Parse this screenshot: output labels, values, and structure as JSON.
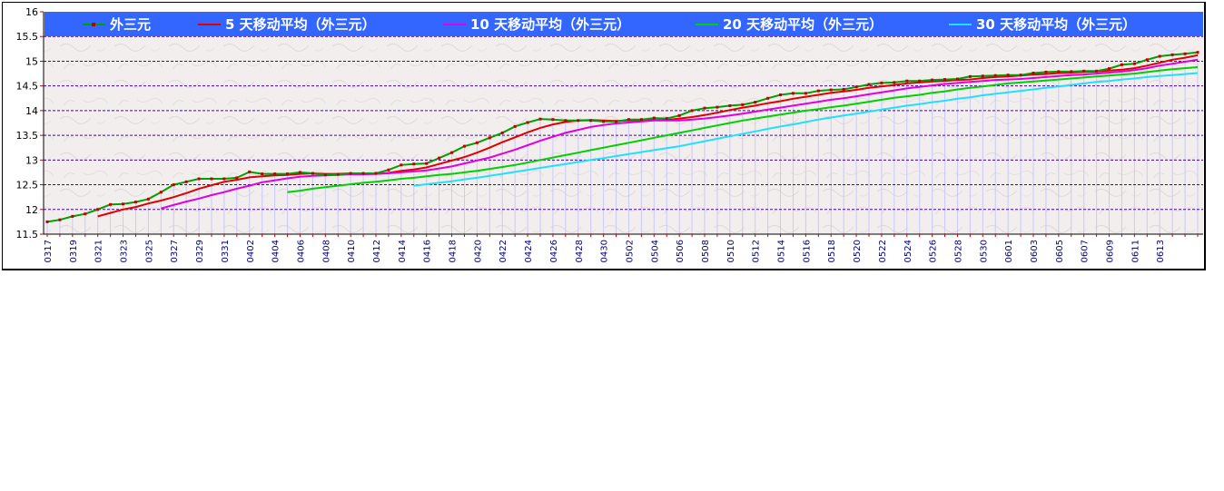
{
  "chart_data": {
    "type": "line",
    "title": "",
    "xlabel": "",
    "ylabel": "",
    "ylim": [
      11.5,
      16
    ],
    "yticks": [
      "11.5",
      "12",
      "12.5",
      "13",
      "13.5",
      "14",
      "14.5",
      "15",
      "15.5",
      "16"
    ],
    "legend_position": "top",
    "grid": "horizontal dashed",
    "x_tick_labels": [
      "0317",
      "0319",
      "0321",
      "0323",
      "0325",
      "0327",
      "0329",
      "0331",
      "0402",
      "0404",
      "0406",
      "0408",
      "0410",
      "0412",
      "0414",
      "0416",
      "0418",
      "0420",
      "0422",
      "0424",
      "0426",
      "0428",
      "0430",
      "0502",
      "0504",
      "0506",
      "0508",
      "0510",
      "0512",
      "0514",
      "0516",
      "0518",
      "0520",
      "0522",
      "0524",
      "0526",
      "0528",
      "0530",
      "0601",
      "0603",
      "0605",
      "0607",
      "0609",
      "0611",
      "0613"
    ],
    "colors": {
      "legend_band": "#3366ff",
      "plot_bg": "#f3eeee",
      "gridline": "#4a00a0",
      "fill_bars": "#c8c8ff",
      "tick_color": "#c00000"
    },
    "series": [
      {
        "name": "外三元",
        "color": "#00a000",
        "marker_color": "#c00000",
        "values": [
          11.75,
          11.79,
          11.86,
          11.91,
          12.0,
          12.1,
          12.11,
          12.15,
          12.21,
          12.35,
          12.5,
          12.56,
          12.62,
          12.62,
          12.62,
          12.64,
          12.76,
          12.72,
          12.72,
          12.72,
          12.75,
          12.73,
          12.7,
          12.71,
          12.73,
          12.73,
          12.73,
          12.8,
          12.9,
          12.92,
          12.93,
          13.04,
          13.15,
          13.28,
          13.35,
          13.45,
          13.55,
          13.68,
          13.76,
          13.83,
          13.82,
          13.8,
          13.8,
          13.8,
          13.78,
          13.78,
          13.82,
          13.82,
          13.85,
          13.84,
          13.9,
          14.0,
          14.05,
          14.07,
          14.1,
          14.12,
          14.17,
          14.25,
          14.32,
          14.35,
          14.35,
          14.4,
          14.42,
          14.43,
          14.48,
          14.53,
          14.56,
          14.57,
          14.6,
          14.6,
          14.62,
          14.63,
          14.64,
          14.69,
          14.7,
          14.71,
          14.72,
          14.72,
          14.76,
          14.78,
          14.79,
          14.79,
          14.8,
          14.8,
          14.85,
          14.93,
          14.95,
          15.03,
          15.1,
          15.13,
          15.15,
          15.18
        ]
      },
      {
        "name": "5 天移动平均（外三元）",
        "color": "#e00000",
        "values": [
          null,
          null,
          null,
          null,
          11.86,
          11.93,
          12.0,
          12.05,
          12.12,
          12.18,
          12.25,
          12.33,
          12.42,
          12.49,
          12.56,
          12.6,
          12.65,
          12.67,
          12.69,
          12.7,
          12.72,
          12.73,
          12.72,
          12.72,
          12.73,
          12.72,
          12.72,
          12.74,
          12.78,
          12.81,
          12.85,
          12.92,
          12.99,
          13.06,
          13.15,
          13.25,
          13.36,
          13.46,
          13.56,
          13.65,
          13.72,
          13.77,
          13.8,
          13.81,
          13.8,
          13.79,
          13.8,
          13.8,
          13.81,
          13.81,
          13.84,
          13.87,
          13.91,
          13.96,
          14.01,
          14.06,
          14.1,
          14.15,
          14.19,
          14.24,
          14.28,
          14.32,
          14.36,
          14.39,
          14.42,
          14.46,
          14.49,
          14.52,
          14.55,
          14.57,
          14.59,
          14.6,
          14.62,
          14.63,
          14.66,
          14.68,
          14.69,
          14.71,
          14.73,
          14.74,
          14.76,
          14.77,
          14.78,
          14.79,
          14.81,
          14.83,
          14.86,
          14.91,
          14.97,
          15.03,
          15.07,
          15.12
        ]
      },
      {
        "name": "10 天移动平均（外三元）",
        "color": "#e000e0",
        "values": [
          null,
          null,
          null,
          null,
          null,
          null,
          null,
          null,
          null,
          12.02,
          12.09,
          12.16,
          12.22,
          12.29,
          12.35,
          12.42,
          12.48,
          12.55,
          12.59,
          12.63,
          12.66,
          12.68,
          12.69,
          12.7,
          12.71,
          12.71,
          12.72,
          12.73,
          12.75,
          12.77,
          12.79,
          12.83,
          12.87,
          12.93,
          12.99,
          13.05,
          13.13,
          13.21,
          13.3,
          13.39,
          13.47,
          13.55,
          13.61,
          13.67,
          13.71,
          13.74,
          13.76,
          13.78,
          13.8,
          13.8,
          13.8,
          13.82,
          13.84,
          13.87,
          13.9,
          13.94,
          13.98,
          14.02,
          14.06,
          14.1,
          14.14,
          14.18,
          14.22,
          14.25,
          14.29,
          14.33,
          14.37,
          14.41,
          14.45,
          14.48,
          14.51,
          14.54,
          14.56,
          14.58,
          14.6,
          14.62,
          14.63,
          14.64,
          14.66,
          14.68,
          14.7,
          14.72,
          14.73,
          14.75,
          14.77,
          14.79,
          14.82,
          14.86,
          14.91,
          14.95,
          14.99,
          15.03
        ]
      },
      {
        "name": "20 天移动平均（外三元）",
        "color": "#00d000",
        "values": [
          null,
          null,
          null,
          null,
          null,
          null,
          null,
          null,
          null,
          null,
          null,
          null,
          null,
          null,
          null,
          null,
          null,
          null,
          null,
          12.35,
          12.38,
          12.42,
          12.45,
          12.48,
          12.51,
          12.54,
          12.56,
          12.59,
          12.62,
          12.64,
          12.67,
          12.7,
          12.72,
          12.75,
          12.78,
          12.82,
          12.86,
          12.9,
          12.95,
          13.0,
          13.05,
          13.1,
          13.15,
          13.2,
          13.25,
          13.3,
          13.35,
          13.4,
          13.45,
          13.5,
          13.55,
          13.6,
          13.65,
          13.7,
          13.75,
          13.8,
          13.84,
          13.88,
          13.92,
          13.96,
          14.0,
          14.03,
          14.07,
          14.1,
          14.14,
          14.18,
          14.22,
          14.26,
          14.29,
          14.32,
          14.36,
          14.39,
          14.43,
          14.46,
          14.49,
          14.52,
          14.55,
          14.57,
          14.59,
          14.61,
          14.63,
          14.65,
          14.67,
          14.69,
          14.71,
          14.73,
          14.75,
          14.78,
          14.81,
          14.84,
          14.86,
          14.88
        ]
      },
      {
        "name": "30 天移动平均（外三元）",
        "color": "#20e0ff",
        "values": [
          null,
          null,
          null,
          null,
          null,
          null,
          null,
          null,
          null,
          null,
          null,
          null,
          null,
          null,
          null,
          null,
          null,
          null,
          null,
          null,
          null,
          null,
          null,
          null,
          null,
          null,
          null,
          null,
          null,
          12.48,
          12.51,
          12.54,
          12.57,
          12.61,
          12.64,
          12.68,
          12.72,
          12.76,
          12.8,
          12.84,
          12.88,
          12.92,
          12.96,
          13.0,
          13.04,
          13.08,
          13.12,
          13.16,
          13.2,
          13.24,
          13.28,
          13.33,
          13.38,
          13.43,
          13.48,
          13.53,
          13.58,
          13.63,
          13.68,
          13.72,
          13.77,
          13.82,
          13.86,
          13.9,
          13.94,
          13.98,
          14.02,
          14.06,
          14.1,
          14.13,
          14.17,
          14.2,
          14.24,
          14.27,
          14.31,
          14.34,
          14.37,
          14.4,
          14.43,
          14.46,
          14.49,
          14.52,
          14.55,
          14.58,
          14.6,
          14.63,
          14.65,
          14.68,
          14.7,
          14.72,
          14.74,
          14.76
        ]
      }
    ]
  }
}
